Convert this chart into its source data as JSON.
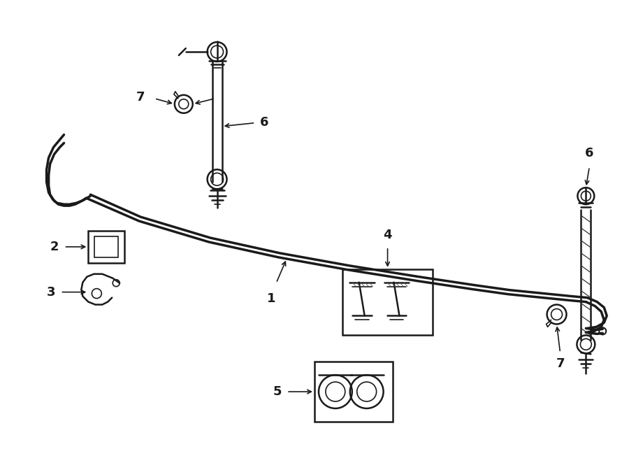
{
  "background_color": "#ffffff",
  "line_color": "#1a1a1a",
  "fig_width": 9.0,
  "fig_height": 6.62,
  "dpi": 100
}
